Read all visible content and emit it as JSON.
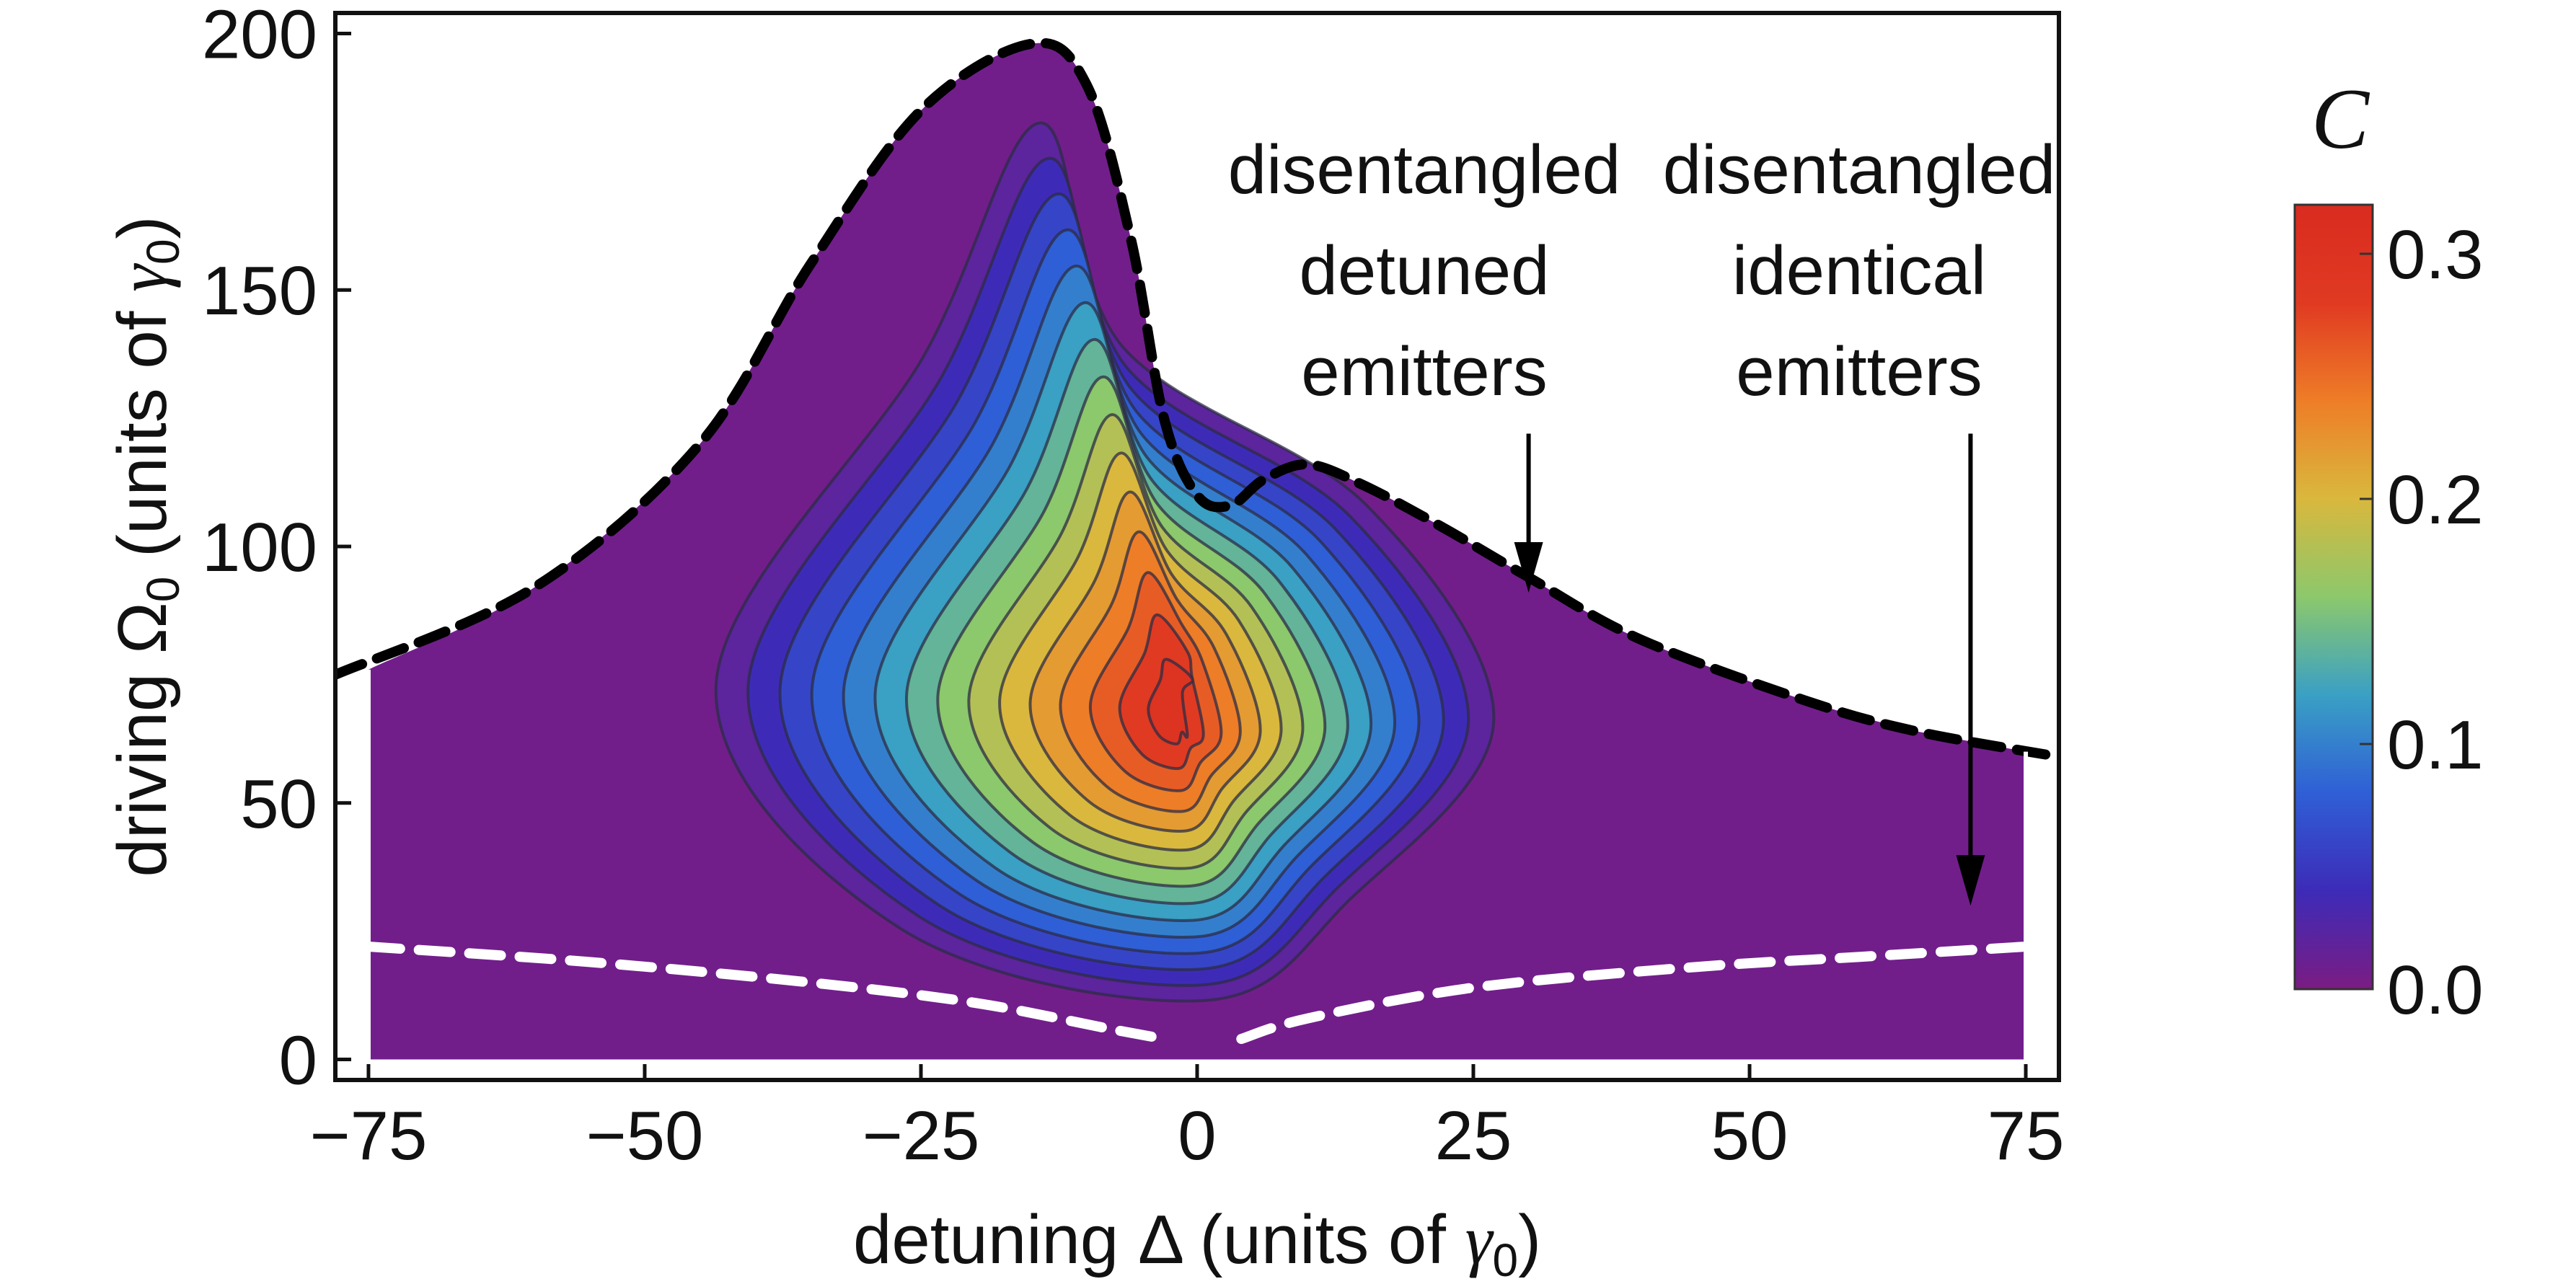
{
  "chart_data": {
    "type": "heatmap",
    "title": "",
    "xlabel": {
      "prefix": "detuning Δ (units of ",
      "symbol": "γ",
      "subscript": "0",
      "suffix": ")"
    },
    "ylabel": {
      "prefix": "driving ",
      "symbol": "Ω",
      "subscript": "0",
      "middle": " (units of ",
      "symbol2": "γ",
      "subscript2": "0",
      "suffix": ")"
    },
    "xlim": [
      -78,
      78
    ],
    "ylim": [
      -4,
      204
    ],
    "xticks": [
      -75,
      -50,
      -25,
      0,
      25,
      50,
      75
    ],
    "xtick_labels": [
      "−75",
      "−50",
      "−25",
      "0",
      "25",
      "50",
      "75"
    ],
    "yticks": [
      0,
      50,
      100,
      150,
      200
    ],
    "ytick_labels": [
      "0",
      "50",
      "100",
      "150",
      "200"
    ],
    "colorbar": {
      "label": "C",
      "range": [
        0,
        0.32
      ],
      "ticks": [
        0.0,
        0.1,
        0.2,
        0.3
      ],
      "tick_labels": [
        "0.0",
        "0.1",
        "0.2",
        "0.3"
      ],
      "colors": [
        "#7b1c82",
        "#3d2bb8",
        "#2f5fd6",
        "#3aa0c4",
        "#8cc86c",
        "#d9b83d",
        "#ee7d27",
        "#e03a22",
        "#d92b20"
      ]
    },
    "entanglement_boundary_upper": {
      "style": "black dashed",
      "points": [
        [
          -78,
          75
        ],
        [
          -60,
          92
        ],
        [
          -45,
          120
        ],
        [
          -35,
          155
        ],
        [
          -25,
          185
        ],
        [
          -15,
          198
        ],
        [
          -10,
          190
        ],
        [
          -6,
          160
        ],
        [
          -3,
          125
        ],
        [
          0,
          110
        ],
        [
          3,
          108
        ],
        [
          6,
          113
        ],
        [
          10,
          116
        ],
        [
          15,
          112
        ],
        [
          22,
          104
        ],
        [
          30,
          94
        ],
        [
          40,
          82
        ],
        [
          55,
          70
        ],
        [
          65,
          64
        ],
        [
          78,
          59
        ]
      ]
    },
    "disentangled_lower_left": {
      "style": "white dashed",
      "points": [
        [
          -75,
          22
        ],
        [
          -55,
          19
        ],
        [
          -35,
          15
        ],
        [
          -20,
          11
        ],
        [
          -8,
          6
        ],
        [
          -3,
          4
        ]
      ]
    },
    "disentangled_lower_right": {
      "style": "white dashed",
      "points": [
        [
          4,
          4
        ],
        [
          10,
          8
        ],
        [
          25,
          14
        ],
        [
          45,
          18
        ],
        [
          60,
          20
        ],
        [
          75,
          22
        ]
      ]
    },
    "concurrence_peak": {
      "x": -2,
      "y": 68,
      "value": 0.31
    },
    "contour_levels": [
      0.01,
      0.03,
      0.05,
      0.07,
      0.09,
      0.11,
      0.13,
      0.15,
      0.17,
      0.19,
      0.21,
      0.23,
      0.25,
      0.27,
      0.29
    ]
  },
  "annotations": [
    {
      "lines": [
        "disentangled",
        "detuned",
        "emitters"
      ],
      "arrow_from": [
        30,
        122
      ],
      "arrow_to": [
        30,
        91
      ]
    },
    {
      "lines": [
        "disentangled",
        "identical",
        "emitters"
      ],
      "arrow_from": [
        70,
        122
      ],
      "arrow_to": [
        70,
        30
      ]
    }
  ]
}
